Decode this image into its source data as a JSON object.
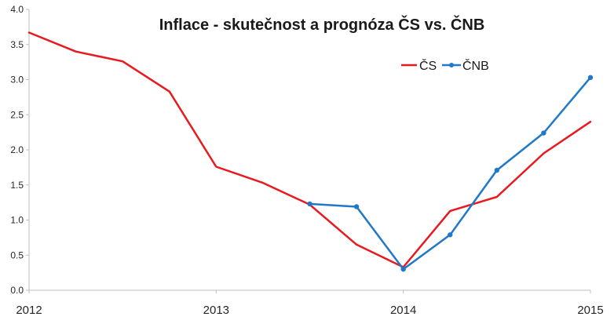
{
  "chart_data": {
    "type": "line",
    "title": "Inflace - skutečnost a prognóza ČS vs. ČNB",
    "xlabel": "",
    "ylabel": "",
    "ylim": [
      0,
      4
    ],
    "xlim": [
      2012,
      2015
    ],
    "y_ticks": [
      "0.0",
      "0.5",
      "1.0",
      "1.5",
      "2.0",
      "2.5",
      "3.0",
      "3.5",
      "4.0"
    ],
    "x_ticks": [
      "2012",
      "2013",
      "2014",
      "2015"
    ],
    "grid": "none",
    "legend_position": "top-right",
    "series": [
      {
        "name": "ČS",
        "color": "#e8191f",
        "markers": false,
        "x": [
          2012.0,
          2012.25,
          2012.5,
          2012.75,
          2013.0,
          2013.25,
          2013.5,
          2013.75,
          2014.0,
          2014.25,
          2014.5,
          2014.75,
          2015.0
        ],
        "y": [
          3.67,
          3.4,
          3.26,
          2.83,
          1.76,
          1.53,
          1.22,
          0.65,
          0.33,
          1.13,
          1.33,
          1.95,
          2.4
        ]
      },
      {
        "name": "ČNB",
        "color": "#1f78c8",
        "markers": true,
        "x": [
          2013.5,
          2013.75,
          2014.0,
          2014.25,
          2014.5,
          2014.75,
          2015.0
        ],
        "y": [
          1.23,
          1.19,
          0.3,
          0.79,
          1.71,
          2.24,
          3.03
        ]
      }
    ]
  }
}
